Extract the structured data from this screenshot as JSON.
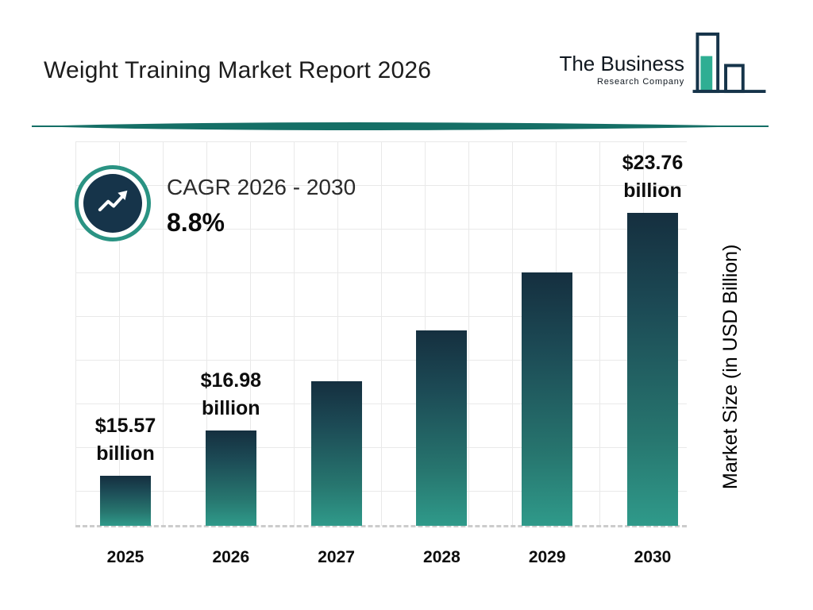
{
  "header": {
    "title": "Weight Training Market Report 2026",
    "logo": {
      "line1": "The Business",
      "line2": "Research Company"
    }
  },
  "cagr_badge": {
    "label": "CAGR 2026 - 2030",
    "value": "8.8%"
  },
  "chart_data": {
    "type": "bar",
    "title": "Weight Training Market Report 2026",
    "ylabel": "Market Size (in USD Billion)",
    "unit": "USD Billion",
    "categories": [
      "2025",
      "2026",
      "2027",
      "2028",
      "2029",
      "2030"
    ],
    "values": [
      15.57,
      16.98,
      18.5,
      20.1,
      21.9,
      23.76
    ],
    "values_estimated": [
      false,
      false,
      true,
      true,
      true,
      false
    ],
    "value_labels": [
      "$15.57 billion",
      "$16.98 billion",
      null,
      null,
      null,
      "$23.76 billion"
    ],
    "cagr_2026_2030": "8.8%",
    "ylim": [
      14,
      26
    ],
    "grid": true,
    "legend": false
  },
  "colors": {
    "navy": "#16344a",
    "teal": "#2a9383",
    "bar_gradient_top": "#152f3f",
    "bar_gradient_bottom": "#2f9a8a",
    "divider": "#156f66",
    "gridline": "#e9e9e9"
  }
}
